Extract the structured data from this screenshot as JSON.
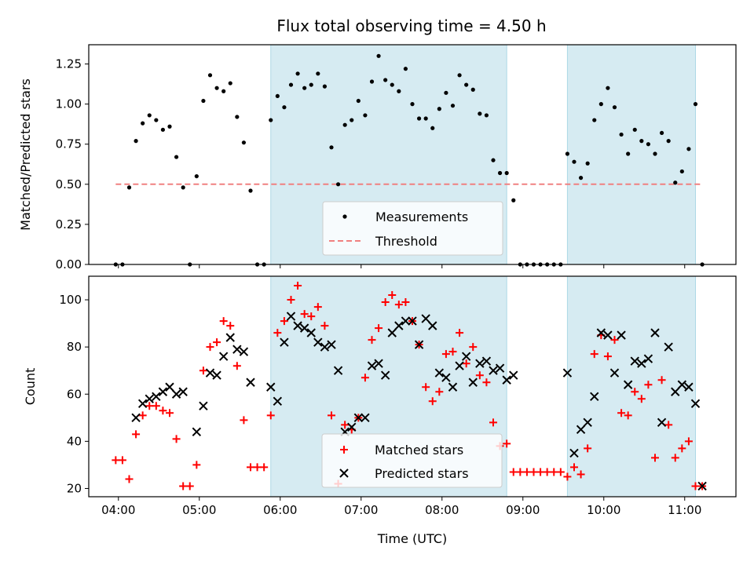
{
  "chart_data": [
    {
      "type": "scatter",
      "title": "Flux total observing time = 4.50 h",
      "ylabel": "Matched/Predicted stars",
      "xlabel": "",
      "xlim": [
        "03:38",
        "11:38"
      ],
      "ylim": [
        0,
        1.37
      ],
      "yticks": [
        0.0,
        0.25,
        0.5,
        0.75,
        1.0,
        1.25
      ],
      "ytick_labels": [
        "0.00",
        "0.25",
        "0.50",
        "0.75",
        "1.00",
        "1.25"
      ],
      "xticks": [
        "04:00",
        "05:00",
        "06:00",
        "07:00",
        "08:00",
        "09:00",
        "10:00",
        "11:00"
      ],
      "shaded_intervals": [
        [
          "05:53",
          "08:48"
        ],
        [
          "09:33",
          "11:08"
        ]
      ],
      "threshold": {
        "name": "Threshold",
        "value": 0.5,
        "x_range": [
          "03:58",
          "11:13"
        ],
        "style": "dashed",
        "color": "#f08080"
      },
      "legend": {
        "placement": "lower-center",
        "entries": [
          "Measurements",
          "Threshold"
        ]
      },
      "series": [
        {
          "name": "Measurements",
          "marker": "dot",
          "color": "#000000",
          "x": [
            "03:58",
            "04:03",
            "04:08",
            "04:13",
            "04:18",
            "04:23",
            "04:28",
            "04:33",
            "04:38",
            "04:43",
            "04:48",
            "04:53",
            "04:58",
            "05:03",
            "05:08",
            "05:13",
            "05:18",
            "05:23",
            "05:28",
            "05:33",
            "05:38",
            "05:43",
            "05:48",
            "05:53",
            "05:58",
            "06:03",
            "06:08",
            "06:13",
            "06:18",
            "06:23",
            "06:28",
            "06:33",
            "06:38",
            "06:43",
            "06:48",
            "06:53",
            "06:58",
            "07:03",
            "07:08",
            "07:13",
            "07:18",
            "07:23",
            "07:28",
            "07:33",
            "07:38",
            "07:43",
            "07:48",
            "07:53",
            "07:58",
            "08:03",
            "08:08",
            "08:13",
            "08:18",
            "08:23",
            "08:28",
            "08:33",
            "08:38",
            "08:43",
            "08:48",
            "08:53",
            "08:58",
            "09:03",
            "09:08",
            "09:13",
            "09:18",
            "09:23",
            "09:28",
            "09:33",
            "09:38",
            "09:43",
            "09:48",
            "09:53",
            "09:58",
            "10:03",
            "10:08",
            "10:13",
            "10:18",
            "10:23",
            "10:28",
            "10:33",
            "10:38",
            "10:43",
            "10:48",
            "10:53",
            "10:58",
            "11:03",
            "11:08",
            "11:13"
          ],
          "y": [
            0,
            0,
            0.48,
            0.77,
            0.88,
            0.93,
            0.9,
            0.84,
            0.86,
            0.67,
            0.48,
            0,
            0.55,
            1.02,
            1.18,
            1.1,
            1.08,
            1.13,
            0.92,
            0.76,
            0.46,
            0,
            0,
            0.9,
            1.05,
            0.98,
            1.12,
            1.19,
            1.1,
            1.12,
            1.19,
            1.11,
            0.73,
            0.5,
            0.87,
            0.9,
            1.02,
            0.93,
            1.14,
            1.3,
            1.15,
            1.12,
            1.08,
            1.22,
            1.0,
            0.91,
            0.91,
            0.85,
            0.97,
            1.07,
            0.99,
            1.18,
            1.12,
            1.09,
            0.94,
            0.93,
            0.65,
            0.57,
            0.57,
            0.4,
            0,
            0,
            0,
            0,
            0,
            0,
            0,
            0.69,
            0.64,
            0.54,
            0.63,
            0.9,
            1.0,
            1.1,
            0.98,
            0.81,
            0.69,
            0.84,
            0.77,
            0.75,
            0.69,
            0.82,
            0.77,
            0.51,
            0.58,
            0.72,
            1.0,
            0
          ]
        }
      ]
    },
    {
      "type": "scatter",
      "title": "",
      "xlabel": "Time (UTC)",
      "ylabel": "Count",
      "xlim": [
        "03:38",
        "11:38"
      ],
      "ylim": [
        16.5,
        110
      ],
      "yticks": [
        20,
        40,
        60,
        80,
        100
      ],
      "ytick_labels": [
        "20",
        "40",
        "60",
        "80",
        "100"
      ],
      "xticks": [
        "04:00",
        "05:00",
        "06:00",
        "07:00",
        "08:00",
        "09:00",
        "10:00",
        "11:00"
      ],
      "xtick_labels": [
        "04:00",
        "05:00",
        "06:00",
        "07:00",
        "08:00",
        "09:00",
        "10:00",
        "11:00"
      ],
      "shaded_intervals": [
        [
          "05:53",
          "08:48"
        ],
        [
          "09:33",
          "11:08"
        ]
      ],
      "legend": {
        "placement": "lower-center",
        "entries": [
          "Matched stars",
          "Predicted stars"
        ]
      },
      "series": [
        {
          "name": "Matched stars",
          "marker": "plus",
          "color": "#ff0000",
          "x": [
            "03:58",
            "04:03",
            "04:08",
            "04:13",
            "04:18",
            "04:23",
            "04:28",
            "04:33",
            "04:38",
            "04:43",
            "04:48",
            "04:53",
            "04:58",
            "05:03",
            "05:08",
            "05:13",
            "05:18",
            "05:23",
            "05:28",
            "05:33",
            "05:38",
            "05:43",
            "05:48",
            "05:53",
            "05:58",
            "06:03",
            "06:08",
            "06:13",
            "06:18",
            "06:23",
            "06:28",
            "06:33",
            "06:38",
            "06:43",
            "06:48",
            "06:53",
            "06:58",
            "07:03",
            "07:08",
            "07:13",
            "07:18",
            "07:23",
            "07:28",
            "07:33",
            "07:38",
            "07:43",
            "07:48",
            "07:53",
            "07:58",
            "08:03",
            "08:08",
            "08:13",
            "08:18",
            "08:23",
            "08:28",
            "08:33",
            "08:38",
            "08:43",
            "08:48",
            "08:53",
            "08:58",
            "09:03",
            "09:08",
            "09:13",
            "09:18",
            "09:23",
            "09:28",
            "09:33",
            "09:38",
            "09:43",
            "09:48",
            "09:53",
            "09:58",
            "10:03",
            "10:08",
            "10:13",
            "10:18",
            "10:23",
            "10:28",
            "10:33",
            "10:38",
            "10:43",
            "10:48",
            "10:53",
            "10:58",
            "11:03",
            "11:08",
            "11:13"
          ],
          "y": [
            32,
            32,
            24,
            43,
            51,
            55,
            55,
            53,
            52,
            41,
            21,
            21,
            30,
            70,
            80,
            82,
            91,
            89,
            72,
            49,
            29,
            29,
            29,
            51,
            86,
            91,
            100,
            106,
            94,
            93,
            97,
            89,
            51,
            22,
            47,
            45,
            50,
            67,
            83,
            88,
            99,
            102,
            98,
            99,
            91,
            81,
            63,
            57,
            61,
            77,
            78,
            86,
            73,
            80,
            68,
            65,
            48,
            38,
            39,
            27,
            27,
            27,
            27,
            27,
            27,
            27,
            27,
            25,
            29,
            26,
            37,
            77,
            85,
            76,
            83,
            52,
            51,
            61,
            58,
            64,
            33,
            66,
            47,
            33,
            37,
            40,
            21,
            21
          ]
        },
        {
          "name": "Predicted stars",
          "marker": "x",
          "color": "#000000",
          "x": [
            "04:13",
            "04:18",
            "04:23",
            "04:28",
            "04:33",
            "04:38",
            "04:43",
            "04:48",
            "04:58",
            "05:03",
            "05:08",
            "05:13",
            "05:18",
            "05:23",
            "05:28",
            "05:33",
            "05:38",
            "05:53",
            "05:58",
            "06:03",
            "06:08",
            "06:13",
            "06:18",
            "06:23",
            "06:28",
            "06:33",
            "06:38",
            "06:43",
            "06:48",
            "06:53",
            "06:58",
            "07:03",
            "07:08",
            "07:13",
            "07:18",
            "07:23",
            "07:28",
            "07:33",
            "07:38",
            "07:43",
            "07:48",
            "07:53",
            "07:58",
            "08:03",
            "08:08",
            "08:13",
            "08:18",
            "08:23",
            "08:28",
            "08:33",
            "08:38",
            "08:43",
            "08:48",
            "08:53",
            "09:33",
            "09:38",
            "09:43",
            "09:48",
            "09:53",
            "09:58",
            "10:03",
            "10:08",
            "10:13",
            "10:18",
            "10:23",
            "10:28",
            "10:33",
            "10:38",
            "10:43",
            "10:48",
            "10:53",
            "10:58",
            "11:03",
            "11:08",
            "11:13"
          ],
          "y": [
            50,
            56,
            58,
            59,
            61,
            63,
            60,
            61,
            44,
            55,
            69,
            68,
            76,
            84,
            79,
            78,
            65,
            63,
            57,
            82,
            93,
            89,
            88,
            86,
            82,
            80,
            81,
            70,
            44,
            46,
            50,
            50,
            72,
            73,
            68,
            86,
            89,
            91,
            91,
            81,
            92,
            89,
            69,
            67,
            63,
            72,
            76,
            65,
            73,
            74,
            70,
            71,
            66,
            68,
            69,
            35,
            45,
            48,
            59,
            86,
            85,
            69,
            85,
            64,
            74,
            73,
            75,
            86,
            48,
            80,
            61,
            64,
            63,
            56,
            21
          ]
        }
      ]
    }
  ]
}
